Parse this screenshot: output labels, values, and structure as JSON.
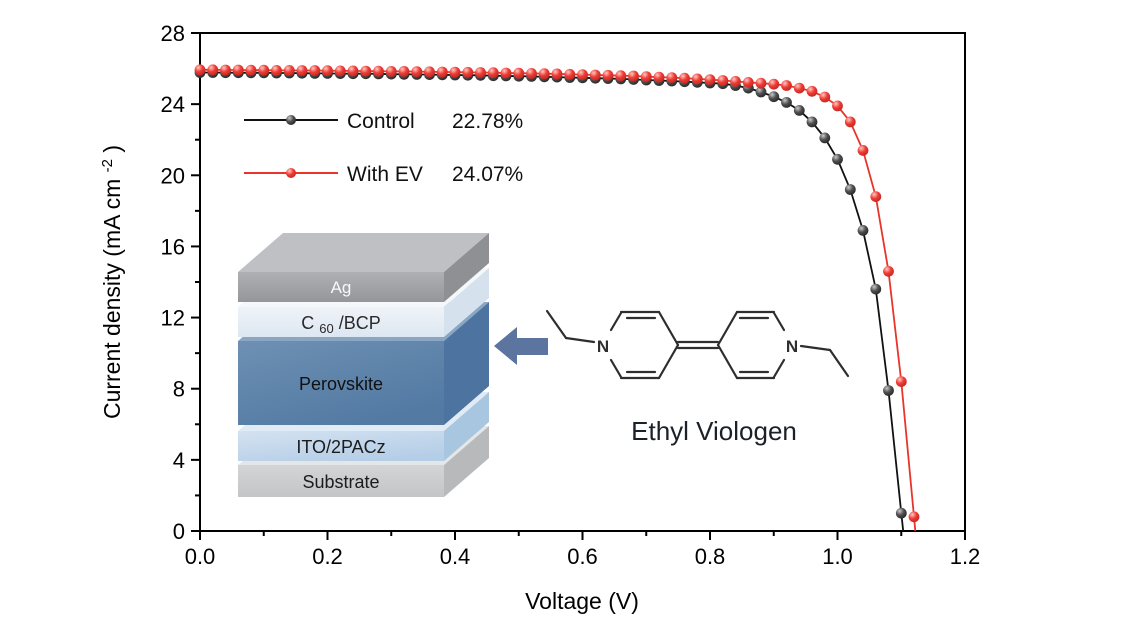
{
  "figure": {
    "background": "#ffffff"
  },
  "chart_data": {
    "type": "line",
    "title": "",
    "xlabel": "Voltage (V)",
    "ylabel": "Current density (mA cm⁻²)",
    "ylabel_parts": {
      "main": "Current density (mA cm",
      "sup": "-2",
      "close": ")"
    },
    "xlim": [
      0.0,
      1.2
    ],
    "ylim": [
      0,
      28
    ],
    "grid": false,
    "legend_position": "upper-left-inside",
    "x_major_ticks": [
      0.0,
      0.2,
      0.4,
      0.6,
      0.8,
      1.0,
      1.2
    ],
    "x_tick_labels": [
      "0.0",
      "0.2",
      "0.4",
      "0.6",
      "0.8",
      "1.0",
      "1.2"
    ],
    "x_minor_ticks": [
      0.1,
      0.3,
      0.5,
      0.7,
      0.9,
      1.1
    ],
    "y_major_ticks": [
      0,
      4,
      8,
      12,
      16,
      20,
      24,
      28
    ],
    "y_tick_labels": [
      "0",
      "4",
      "8",
      "12",
      "16",
      "20",
      "24",
      "28"
    ],
    "y_minor_ticks": [
      2,
      6,
      10,
      14,
      18,
      22,
      26
    ],
    "series": [
      {
        "name": "Control",
        "efficiency": "22.78%",
        "color": "#111111",
        "efficiency_color": "#111111",
        "marker": {
          "highlight": "#c9c9c9",
          "body": "#4f4f4f",
          "edge": "#1c1c1c"
        },
        "x": [
          0,
          0.02,
          0.04,
          0.06,
          0.08,
          0.1,
          0.12,
          0.14,
          0.16,
          0.18,
          0.2,
          0.22,
          0.24,
          0.26,
          0.28,
          0.3,
          0.32,
          0.34,
          0.36,
          0.38,
          0.4,
          0.42,
          0.44,
          0.46,
          0.48,
          0.5,
          0.52,
          0.54,
          0.56,
          0.58,
          0.6,
          0.62,
          0.64,
          0.66,
          0.68,
          0.7,
          0.72,
          0.74,
          0.76,
          0.78,
          0.8,
          0.82,
          0.84,
          0.86,
          0.88,
          0.9,
          0.92,
          0.94,
          0.96,
          0.98,
          1.0,
          1.02,
          1.04,
          1.06,
          1.08,
          1.1
        ],
        "y": [
          25.78,
          25.78,
          25.77,
          25.77,
          25.76,
          25.76,
          25.75,
          25.75,
          25.74,
          25.73,
          25.73,
          25.72,
          25.71,
          25.71,
          25.7,
          25.69,
          25.68,
          25.67,
          25.66,
          25.65,
          25.64,
          25.63,
          25.62,
          25.6,
          25.59,
          25.57,
          25.56,
          25.54,
          25.52,
          25.5,
          25.48,
          25.46,
          25.44,
          25.42,
          25.39,
          25.36,
          25.33,
          25.3,
          25.26,
          25.23,
          25.19,
          25.15,
          25.05,
          24.9,
          24.68,
          24.42,
          24.1,
          23.65,
          23.0,
          22.1,
          20.9,
          19.2,
          16.9,
          13.6,
          7.9,
          1.0
        ],
        "zero_crossing": [
          1.103,
          0
        ]
      },
      {
        "name": "With EV",
        "efficiency": "24.07%",
        "color": "#e8352c",
        "efficiency_color": "#e8352c",
        "marker": {
          "highlight": "#ffc9c4",
          "body": "#ee3c35",
          "edge": "#b7201b"
        },
        "x": [
          0,
          0.02,
          0.04,
          0.06,
          0.08,
          0.1,
          0.12,
          0.14,
          0.16,
          0.18,
          0.2,
          0.22,
          0.24,
          0.26,
          0.28,
          0.3,
          0.32,
          0.34,
          0.36,
          0.38,
          0.4,
          0.42,
          0.44,
          0.46,
          0.48,
          0.5,
          0.52,
          0.54,
          0.56,
          0.58,
          0.6,
          0.62,
          0.64,
          0.66,
          0.68,
          0.7,
          0.72,
          0.74,
          0.76,
          0.78,
          0.8,
          0.82,
          0.84,
          0.86,
          0.88,
          0.9,
          0.92,
          0.94,
          0.96,
          0.98,
          1.0,
          1.02,
          1.04,
          1.06,
          1.08,
          1.1,
          1.12
        ],
        "y": [
          25.93,
          25.93,
          25.92,
          25.92,
          25.91,
          25.91,
          25.9,
          25.9,
          25.89,
          25.89,
          25.88,
          25.87,
          25.87,
          25.86,
          25.85,
          25.84,
          25.84,
          25.83,
          25.82,
          25.81,
          25.8,
          25.79,
          25.78,
          25.77,
          25.75,
          25.74,
          25.73,
          25.71,
          25.7,
          25.68,
          25.66,
          25.64,
          25.62,
          25.6,
          25.58,
          25.55,
          25.52,
          25.49,
          25.46,
          25.42,
          25.38,
          25.33,
          25.28,
          25.22,
          25.18,
          25.12,
          25.05,
          24.9,
          24.72,
          24.4,
          23.9,
          23.0,
          21.4,
          18.8,
          14.6,
          8.4,
          0.8
        ],
        "zero_crossing": [
          1.122,
          0
        ]
      }
    ]
  },
  "inset_device": {
    "arrow_color": "#5b74a0",
    "layers": [
      {
        "name": "ag",
        "label": "Ag",
        "label_color": "#f7f7f7",
        "front_light": "#aeb0b3",
        "front_dark": "#94969a",
        "top": "#bec0c3",
        "side": "#8e9093"
      },
      {
        "name": "c60-bcp",
        "label": "C60/BCP",
        "label_parts": {
          "pre": "C",
          "sub": "60",
          "post": "/BCP"
        },
        "label_color": "#2a2a2a",
        "front_light": "#eff3f8",
        "front_dark": "#dde7f2",
        "top": "#f5f8fb",
        "side": "#d6e1ee"
      },
      {
        "name": "perovskite",
        "label": "Perovskite",
        "label_color": "#111111",
        "front_light": "#6e90b3",
        "front_dark": "#527aa3",
        "top": "#8aa6c2",
        "side": "#4d74a0"
      },
      {
        "name": "ito-2pacz",
        "label": "ITO/2PACz",
        "label_color": "#1c1c1c",
        "front_light": "#d4e2f1",
        "front_dark": "#b5cee7",
        "top": "#e1ebf5",
        "side": "#a9c6e1"
      },
      {
        "name": "substrate",
        "label": "Substrate",
        "label_color": "#1c1c1c",
        "front_light": "#d3d4d6",
        "front_dark": "#c3c5c7",
        "top": "#e5e6e8",
        "side": "#b7b9bb"
      }
    ]
  },
  "molecule": {
    "name": "Ethyl Viologen",
    "name_color": "#1b2129",
    "n_label": "N",
    "bond_color": "#2e2e2e"
  }
}
